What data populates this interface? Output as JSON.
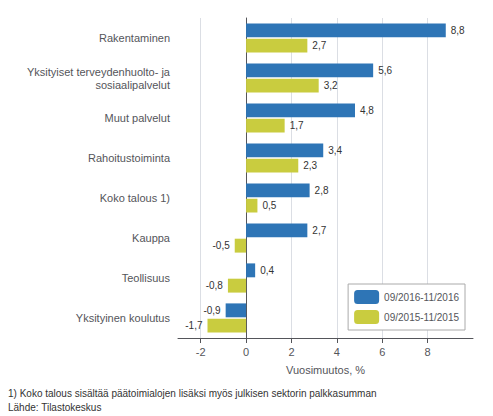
{
  "chart_data": {
    "type": "bar",
    "orientation": "horizontal",
    "categories": [
      "Yksityinen koulutus",
      "Teollisuus",
      "Kauppa",
      "Koko talous 1)",
      "Rahoitustoiminta",
      "Muut palvelut",
      "Yksityiset terveydenhuolto- ja\nsosiaalipalvelut",
      "Rakentaminen"
    ],
    "series": [
      {
        "name": "09/2016-11/2016",
        "color": "#2E75B6",
        "values": [
          -0.9,
          0.4,
          2.7,
          2.8,
          3.4,
          4.8,
          5.6,
          8.8
        ],
        "value_labels": [
          "-0,9",
          "0,4",
          "2,7",
          "2,8",
          "3,4",
          "4,8",
          "5,6",
          "8,8"
        ]
      },
      {
        "name": "09/2015-11/2015",
        "color": "#C9CC3F",
        "values": [
          -1.7,
          -0.8,
          -0.5,
          0.5,
          2.3,
          1.7,
          3.2,
          2.7
        ],
        "value_labels": [
          "-1,7",
          "-0,8",
          "-0,5",
          "0,5",
          "2,3",
          "1,7",
          "3,2",
          "2,7"
        ]
      }
    ],
    "xlabel": "Vuosimuutos, %",
    "xlim": [
      -3,
      10
    ],
    "xticks": [
      -2,
      0,
      2,
      4,
      6,
      8
    ],
    "grid": true,
    "legend": "lower right",
    "data_labels": true,
    "annotations": [
      "1) Koko talous sisältää päätoimialojen lisäksi myös julkisen sektorin palkkasumman",
      "Lähde: Tilastokeskus"
    ]
  }
}
